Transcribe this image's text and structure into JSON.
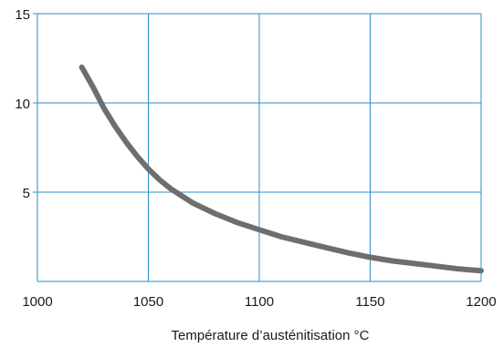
{
  "chart_data": {
    "type": "line",
    "xlabel": "Température d’austénitisation °C",
    "ylabel": "",
    "xlim": [
      1000,
      1200
    ],
    "ylim": [
      0,
      15
    ],
    "x_ticks": [
      1000,
      1050,
      1100,
      1150,
      1200
    ],
    "y_ticks": [
      5,
      10,
      15
    ],
    "grid": true,
    "colors": {
      "grid": "#2a8fc8",
      "frame": "#2a8fc8",
      "curve": "#6e6e6e"
    },
    "series": [
      {
        "x": [
          1020,
          1025,
          1030,
          1035,
          1040,
          1045,
          1050,
          1055,
          1060,
          1070,
          1080,
          1090,
          1100,
          1110,
          1120,
          1130,
          1140,
          1150,
          1160,
          1170,
          1180,
          1190,
          1200
        ],
        "y": [
          12.0,
          10.9,
          9.7,
          8.7,
          7.8,
          7.0,
          6.3,
          5.7,
          5.2,
          4.4,
          3.8,
          3.3,
          2.9,
          2.5,
          2.2,
          1.9,
          1.6,
          1.35,
          1.15,
          1.0,
          0.85,
          0.7,
          0.6
        ]
      }
    ]
  }
}
